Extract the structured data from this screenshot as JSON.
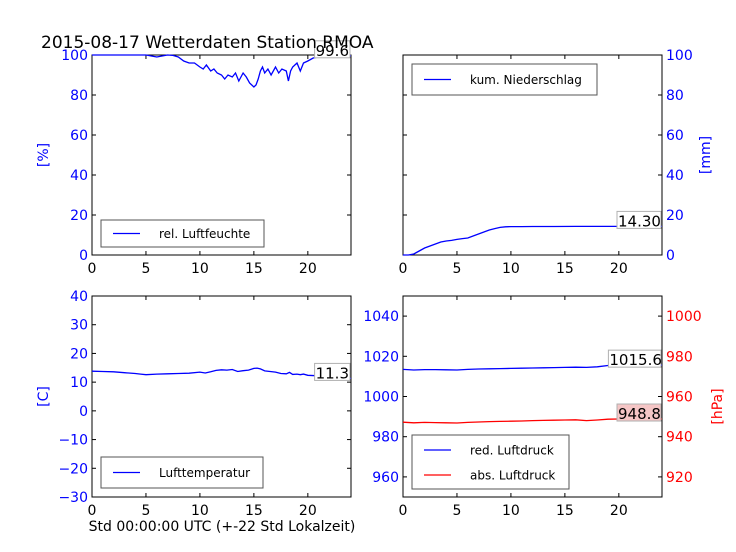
{
  "figure_title": "2015-08-17 Wetterdaten Station RMOA",
  "xlabel": "Std 00:00:00 UTC (+-22 Std Lokalzeit)",
  "colors": {
    "blue": "#0000ff",
    "red": "#ff0000",
    "black": "#000000"
  },
  "chart_data": [
    {
      "id": "humidity",
      "type": "line",
      "title": "",
      "xlabel": "",
      "ylabel": "[%]",
      "ylabel_side": "left",
      "xlim": [
        0,
        24
      ],
      "ylim": [
        0,
        100
      ],
      "xticks": [
        "0",
        "5",
        "10",
        "15",
        "20"
      ],
      "yticks": [
        "0",
        "20",
        "40",
        "60",
        "80",
        "100"
      ],
      "legend_location": "lower-left",
      "annotation": "99.6",
      "series": [
        {
          "name": "rel. Luftfeuchte",
          "color": "#0000ff",
          "x": [
            0,
            1,
            2,
            3,
            4,
            5,
            5.5,
            6,
            6.5,
            7,
            7.5,
            8,
            8.5,
            9,
            9.5,
            10,
            10.3,
            10.6,
            11,
            11.3,
            11.6,
            12,
            12.3,
            12.6,
            13,
            13.3,
            13.6,
            14,
            14.3,
            14.6,
            15,
            15.2,
            15.4,
            15.6,
            15.8,
            16,
            16.3,
            16.6,
            17,
            17.3,
            17.6,
            18,
            18.2,
            18.4,
            18.6,
            19,
            19.3,
            19.6,
            20,
            20.5,
            21,
            22,
            23,
            24
          ],
          "values": [
            100,
            100,
            100,
            100,
            100,
            100,
            99.5,
            99,
            99.5,
            100,
            99.8,
            99,
            97,
            96,
            96,
            94,
            93,
            95,
            92,
            93,
            91,
            90,
            88,
            90,
            89,
            91,
            87,
            91,
            89,
            86,
            84,
            85,
            88,
            92,
            94,
            91,
            93,
            90,
            94,
            91,
            93,
            92,
            87,
            92,
            94,
            96,
            92,
            96,
            97,
            98.5,
            99,
            99.4,
            99.6,
            99.6
          ]
        }
      ]
    },
    {
      "id": "precipitation",
      "type": "line",
      "title": "",
      "xlabel": "",
      "ylabel": "[mm]",
      "ylabel_side": "right",
      "xlim": [
        0,
        24
      ],
      "ylim": [
        0,
        100
      ],
      "xticks": [
        "0",
        "5",
        "10",
        "15",
        "20"
      ],
      "yticks": [
        "0",
        "20",
        "40",
        "60",
        "80",
        "100"
      ],
      "legend_location": "upper-left",
      "annotation": "14.30",
      "series": [
        {
          "name": "kum. Niederschlag",
          "color": "#0000ff",
          "x": [
            0,
            0.5,
            1,
            1.5,
            2,
            2.5,
            3,
            3.5,
            4,
            4.5,
            5,
            5.5,
            6,
            6.5,
            7,
            7.5,
            8,
            8.5,
            9,
            9.5,
            10,
            11,
            12,
            14,
            16,
            18,
            20,
            22,
            24
          ],
          "values": [
            0,
            0,
            0.5,
            2,
            3.5,
            4.5,
            5.5,
            6.5,
            7,
            7.3,
            7.8,
            8.2,
            8.5,
            9.5,
            10.5,
            11.5,
            12.5,
            13.2,
            13.8,
            14.1,
            14.2,
            14.2,
            14.25,
            14.25,
            14.28,
            14.3,
            14.3,
            14.3,
            14.3
          ]
        }
      ]
    },
    {
      "id": "temperature",
      "type": "line",
      "title": "",
      "xlabel": "",
      "ylabel": "[C]",
      "ylabel_side": "left",
      "xlim": [
        0,
        24
      ],
      "ylim": [
        -30,
        40
      ],
      "xticks": [
        "0",
        "5",
        "10",
        "15",
        "20"
      ],
      "yticks": [
        "-30",
        "-20",
        "-10",
        "0",
        "10",
        "20",
        "30",
        "40"
      ],
      "legend_location": "lower-left",
      "annotation": "11.3",
      "series": [
        {
          "name": "Lufttemperatur",
          "color": "#0000ff",
          "x": [
            0,
            1,
            2,
            3,
            4,
            4.5,
            5,
            6,
            7,
            8,
            9,
            10,
            10.5,
            11,
            11.5,
            12,
            12.5,
            13,
            13.5,
            14,
            14.5,
            15,
            15.3,
            15.6,
            16,
            16.5,
            17,
            17.5,
            18,
            18.3,
            18.6,
            19,
            19.3,
            19.6,
            20,
            21,
            22,
            23,
            24
          ],
          "values": [
            13.8,
            13.7,
            13.6,
            13.3,
            13,
            12.8,
            12.6,
            12.8,
            12.9,
            13,
            13.1,
            13.5,
            13.2,
            13.6,
            14.1,
            14.3,
            14.2,
            14.4,
            13.7,
            14,
            14.2,
            14.8,
            14.9,
            14.6,
            13.9,
            13.7,
            13.5,
            13,
            12.9,
            13.4,
            12.7,
            12.8,
            12.6,
            12.8,
            12.4,
            12.2,
            11.8,
            11.6,
            11.3
          ]
        }
      ]
    },
    {
      "id": "pressure",
      "type": "line",
      "title": "",
      "xlabel": "",
      "ylabel": "",
      "ylabel_right": "[hPa]",
      "xlim": [
        0,
        24
      ],
      "ylim": [
        950,
        1050
      ],
      "ylim_right": [
        910,
        1010
      ],
      "xticks": [
        "0",
        "5",
        "10",
        "15",
        "20"
      ],
      "yticks": [
        "960",
        "980",
        "1000",
        "1020",
        "1040"
      ],
      "yticks_right": [
        "920",
        "940",
        "960",
        "980",
        "1000"
      ],
      "legend_location": "lower-left",
      "annotations": [
        "1015.6",
        "948.8"
      ],
      "series": [
        {
          "name": "red. Luftdruck",
          "color": "#0000ff",
          "axis": "left",
          "x": [
            0,
            1,
            2,
            3,
            4,
            5,
            6,
            7,
            8,
            9,
            10,
            11,
            12,
            13,
            14,
            15,
            16,
            17,
            18,
            19,
            20,
            21,
            22,
            23,
            24
          ],
          "values": [
            1013.5,
            1013.2,
            1013.4,
            1013.4,
            1013.3,
            1013.2,
            1013.5,
            1013.7,
            1013.8,
            1013.9,
            1014,
            1014.1,
            1014.2,
            1014.3,
            1014.4,
            1014.5,
            1014.6,
            1014.5,
            1014.8,
            1015.4,
            1015.6,
            1015.6,
            1015.6,
            1015.6,
            1015.6
          ]
        },
        {
          "name": "abs. Luftdruck",
          "color": "#ff0000",
          "axis": "right",
          "x": [
            0,
            1,
            2,
            3,
            4,
            5,
            6,
            7,
            8,
            9,
            10,
            11,
            12,
            13,
            14,
            15,
            16,
            17,
            18,
            19,
            20,
            21,
            22,
            23,
            24
          ],
          "values": [
            947.2,
            946.9,
            947.1,
            947.0,
            946.9,
            946.8,
            947.1,
            947.3,
            947.5,
            947.6,
            947.7,
            947.8,
            948.0,
            948.1,
            948.2,
            948.3,
            948.4,
            948.0,
            948.3,
            948.7,
            948.8,
            948.8,
            948.8,
            948.8,
            948.8
          ]
        }
      ]
    }
  ]
}
